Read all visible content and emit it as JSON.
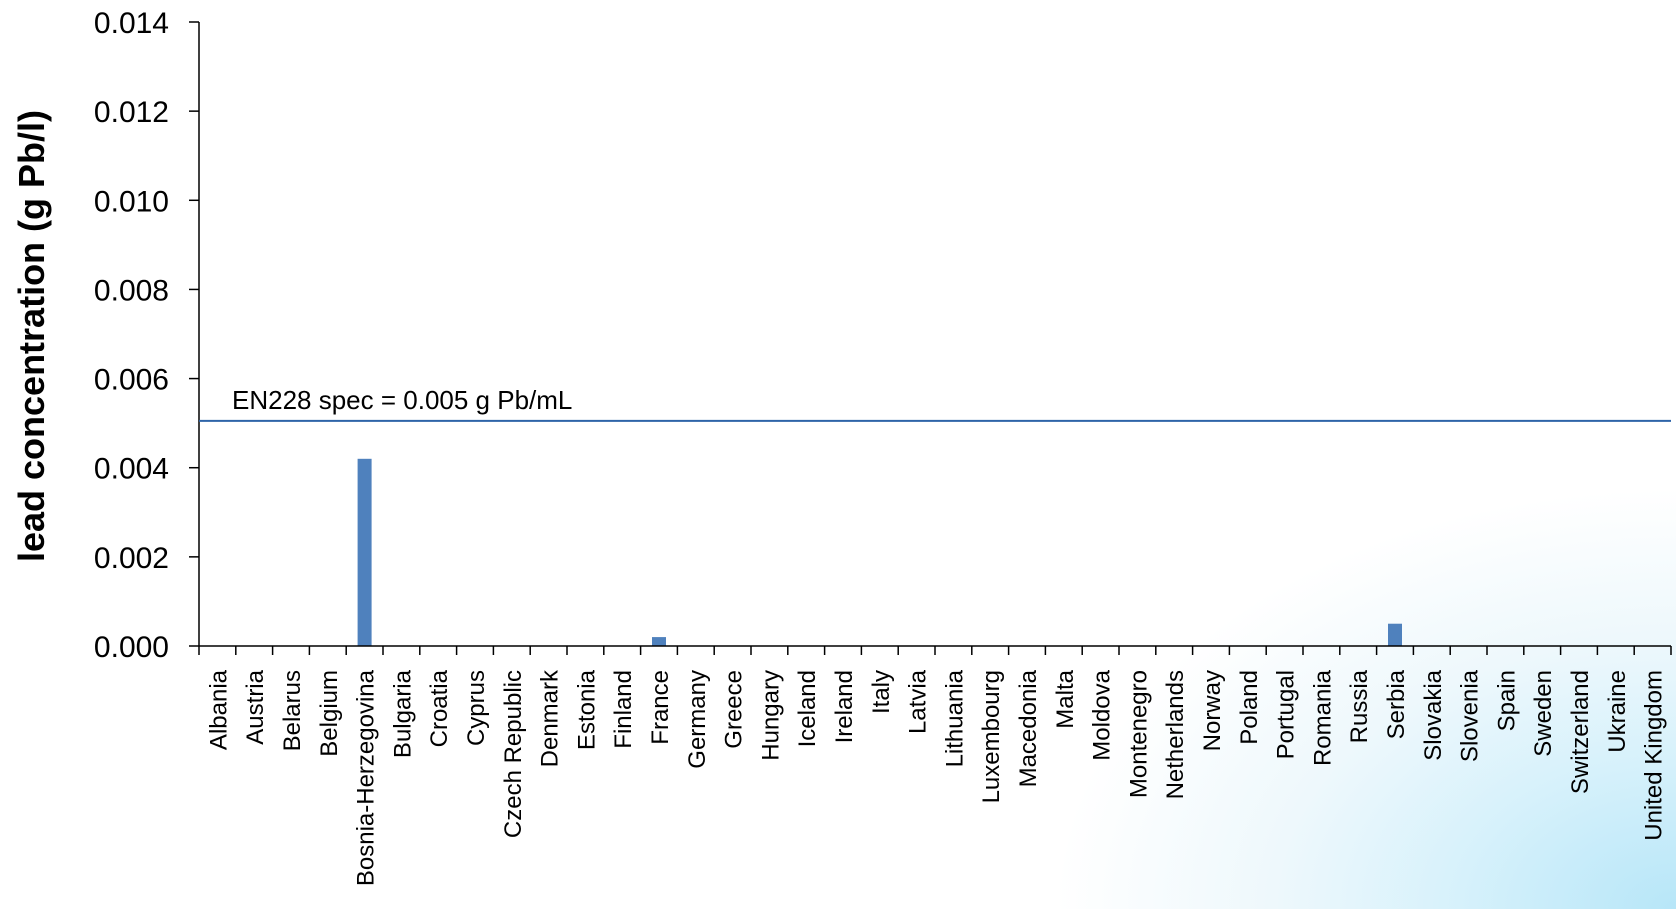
{
  "chart_data": {
    "type": "bar",
    "ylabel": "lead concentration (g Pb/l)",
    "xlabel": "",
    "ylim": [
      0,
      0.014
    ],
    "yticks": [
      "0.000",
      "0.002",
      "0.004",
      "0.006",
      "0.008",
      "0.010",
      "0.012",
      "0.014"
    ],
    "grid": false,
    "categories": [
      "Albania",
      "Austria",
      "Belarus",
      "Belgium",
      "Bosnia-Herzegovina",
      "Bulgaria",
      "Croatia",
      "Cyprus",
      "Czech Republic",
      "Denmark",
      "Estonia",
      "Finland",
      "France",
      "Germany",
      "Greece",
      "Hungary",
      "Iceland",
      "Ireland",
      "Italy",
      "Latvia",
      "Lithuania",
      "Luxembourg",
      "Macedonia",
      "Malta",
      "Moldova",
      "Montenegro",
      "Netherlands",
      "Norway",
      "Poland",
      "Portugal",
      "Romania",
      "Russia",
      "Serbia",
      "Slovakia",
      "Slovenia",
      "Spain",
      "Sweden",
      "Switzerland",
      "Ukraine",
      "United Kingdom"
    ],
    "values": [
      0,
      0,
      0,
      0,
      0.0042,
      0,
      0,
      0,
      0,
      0,
      0,
      0,
      0.0002,
      0,
      0,
      0,
      0,
      0,
      0,
      0,
      0,
      0,
      0,
      0,
      0,
      0,
      0,
      0,
      0,
      0,
      0,
      0,
      0.0005,
      0,
      0,
      0,
      0,
      0,
      0,
      0
    ],
    "bar_color": "#4f81bd",
    "reference_line": {
      "value": 0.00505,
      "label": "EN228 spec = 0.005 g Pb/mL",
      "color": "#2e64a8"
    }
  }
}
